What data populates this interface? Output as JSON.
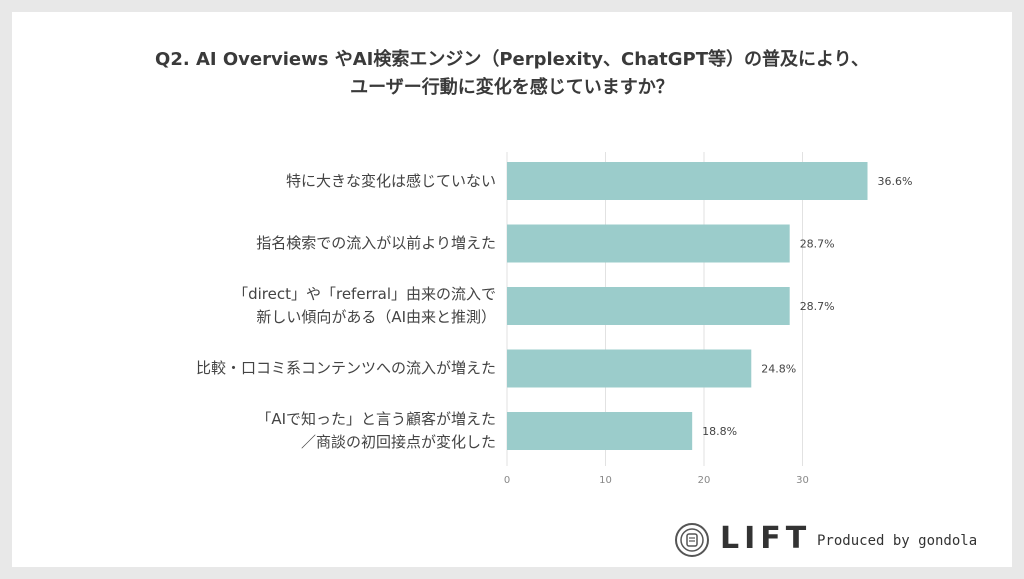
{
  "title": {
    "line1": "Q2. AI Overviews やAI検索エンジン（Perplexity、ChatGPT等）の普及により、",
    "line2": "ユーザー行動に変化を感じていますか？"
  },
  "chart_data": {
    "type": "bar",
    "orientation": "horizontal",
    "categories": [
      [
        "特に大きな変化は感じていない"
      ],
      [
        "指名検索での流入が以前より増えた"
      ],
      [
        "「direct」や「referral」由来の流入で",
        "新しい傾向がある（AI由来と推測）"
      ],
      [
        "比較・口コミ系コンテンツへの流入が増えた"
      ],
      [
        "「AIで知った」と言う顧客が増えた",
        "／商談の初回接点が変化した"
      ]
    ],
    "values": [
      36.6,
      28.7,
      28.7,
      24.8,
      18.8
    ],
    "data_labels": [
      "36.6%",
      "28.7%",
      "28.7%",
      "24.8%",
      "18.8%"
    ],
    "xlim": [
      0,
      37
    ],
    "x_ticks": [
      0,
      10,
      20,
      30
    ],
    "x_tick_labels": [
      "0",
      "10",
      "20",
      "30"
    ],
    "grid": true,
    "colors": {
      "bar": "#9bcccb",
      "grid": "#e2e2e2"
    }
  },
  "footer": {
    "brand": "LIFT",
    "produced_by": "Produced by gondola"
  }
}
